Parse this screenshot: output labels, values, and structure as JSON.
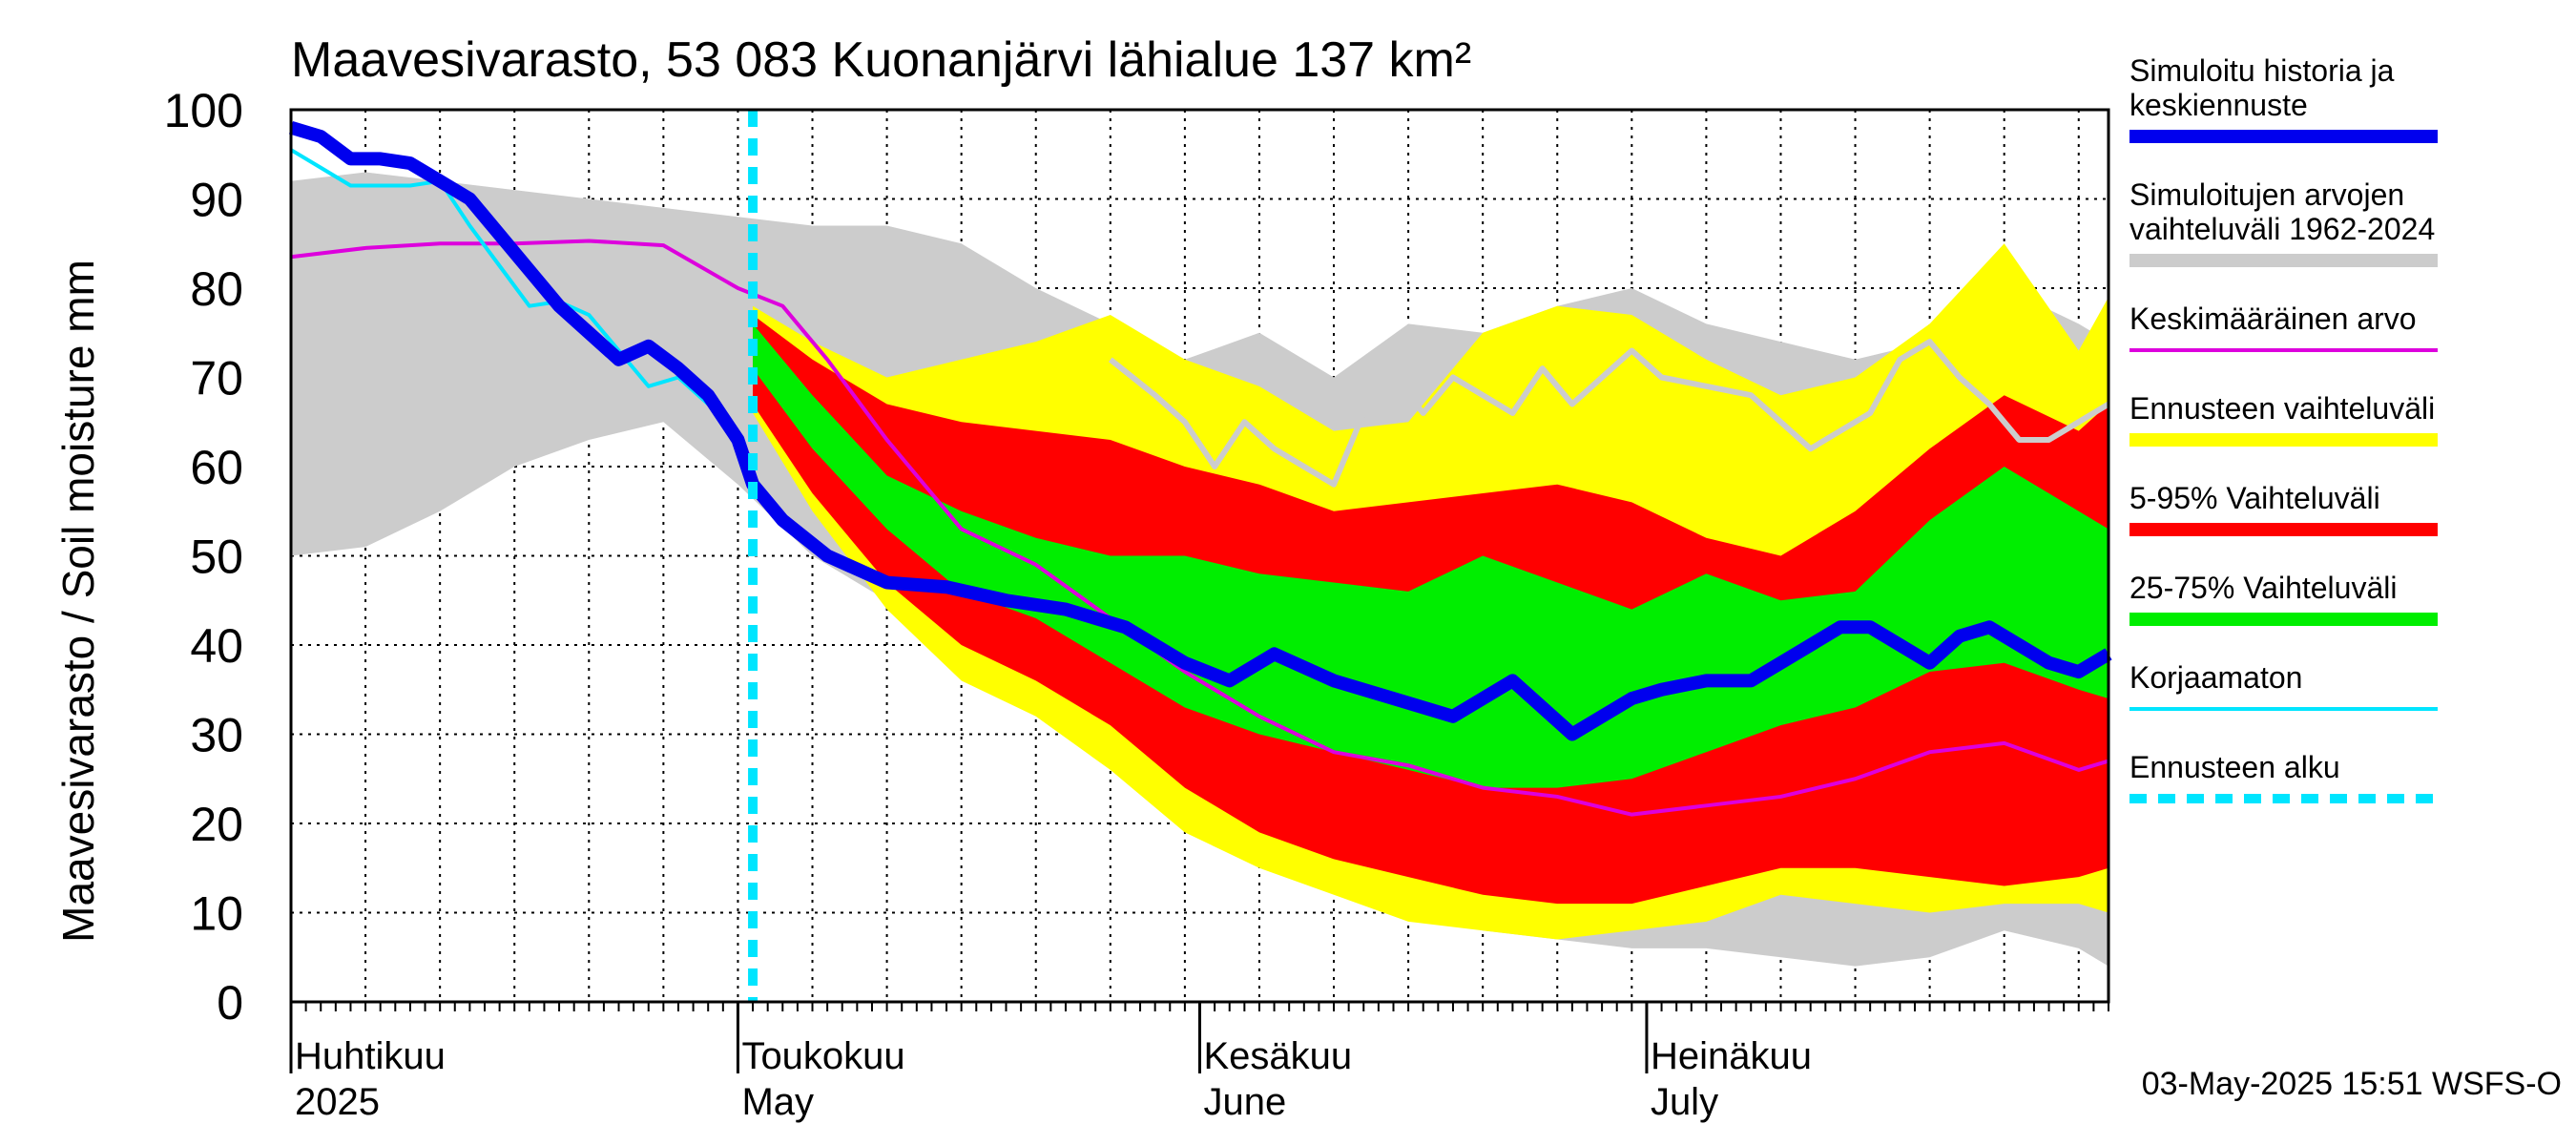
{
  "chart_data": {
    "type": "area",
    "title": "Maavesivarasto, 53 083 Kuonanjärvi lähialue 137 km²",
    "ylabel": "Maavesivarasto / Soil moisture   mm",
    "ylim": [
      0,
      100
    ],
    "y_ticks": [
      0,
      10,
      20,
      30,
      40,
      50,
      60,
      70,
      80,
      90,
      100
    ],
    "x_range_days": [
      0,
      122
    ],
    "months": [
      {
        "fi": "Huhtikuu",
        "en": "2025",
        "day": 0
      },
      {
        "fi": "Toukokuu",
        "en": "May",
        "day": 30
      },
      {
        "fi": "Kesäkuu",
        "en": "June",
        "day": 61
      },
      {
        "fi": "Heinäkuu",
        "en": "July",
        "day": 91
      }
    ],
    "forecast_start_day": 31,
    "timestamp": "03-May-2025 15:51 WSFS-O",
    "legend": [
      {
        "label": "Simuloitu historia ja\nkeskiennuste",
        "color": "#0000ee",
        "style": "thick"
      },
      {
        "label": "Simuloitujen arvojen\nvaihteluväli 1962-2024",
        "color": "#cccccc",
        "style": "band"
      },
      {
        "label": "Keskimääräinen arvo",
        "color": "#dd00dd",
        "style": "line"
      },
      {
        "label": "Ennusteen vaihteluväli",
        "color": "#ffff00",
        "style": "band"
      },
      {
        "label": "5-95% Vaihteluväli",
        "color": "#ff0000",
        "style": "band"
      },
      {
        "label": "25-75% Vaihteluväli",
        "color": "#00ee00",
        "style": "band"
      },
      {
        "label": "Korjaamaton",
        "color": "#00e5ff",
        "style": "line"
      },
      {
        "label": "Ennusteen alku",
        "color": "#00e5ff",
        "style": "dashed"
      }
    ],
    "series": [
      {
        "name": "hist_range",
        "x": [
          0,
          5,
          10,
          15,
          20,
          25,
          30,
          35,
          40,
          45,
          50,
          55,
          60,
          65,
          70,
          75,
          80,
          85,
          90,
          95,
          100,
          105,
          110,
          115,
          120,
          122
        ],
        "upper": [
          92,
          93,
          92,
          91,
          90,
          89,
          88,
          87,
          87,
          85,
          80,
          76,
          72,
          75,
          70,
          76,
          75,
          78,
          80,
          76,
          74,
          72,
          74,
          80,
          76,
          74
        ],
        "lower": [
          50,
          51,
          55,
          60,
          63,
          65,
          58,
          50,
          45,
          40,
          35,
          27,
          20,
          16,
          13,
          11,
          8,
          7,
          6,
          6,
          5,
          4,
          5,
          8,
          6,
          4
        ]
      },
      {
        "name": "forecast_range",
        "x": [
          31,
          35,
          40,
          45,
          50,
          55,
          60,
          65,
          70,
          75,
          80,
          85,
          90,
          95,
          100,
          105,
          110,
          115,
          120,
          122
        ],
        "upper": [
          78,
          74,
          70,
          72,
          74,
          77,
          72,
          69,
          64,
          65,
          75,
          78,
          77,
          72,
          68,
          70,
          76,
          85,
          73,
          79
        ],
        "lower": [
          66,
          55,
          44,
          36,
          32,
          26,
          19,
          15,
          12,
          9,
          8,
          7,
          8,
          9,
          12,
          11,
          10,
          11,
          11,
          10
        ]
      },
      {
        "name": "p5_95",
        "x": [
          31,
          35,
          40,
          45,
          50,
          55,
          60,
          65,
          70,
          75,
          80,
          85,
          90,
          95,
          100,
          105,
          110,
          115,
          120,
          122
        ],
        "upper": [
          77,
          72,
          67,
          65,
          64,
          63,
          60,
          58,
          55,
          56,
          57,
          58,
          56,
          52,
          50,
          55,
          62,
          68,
          64,
          67
        ],
        "lower": [
          67,
          57,
          47,
          40,
          36,
          31,
          24,
          19,
          16,
          14,
          12,
          11,
          11,
          13,
          15,
          15,
          14,
          13,
          14,
          15
        ]
      },
      {
        "name": "p25_75",
        "x": [
          31,
          35,
          40,
          45,
          50,
          55,
          60,
          65,
          70,
          75,
          80,
          85,
          90,
          95,
          100,
          105,
          110,
          115,
          120,
          122
        ],
        "upper": [
          76,
          68,
          59,
          55,
          52,
          50,
          50,
          48,
          47,
          46,
          50,
          47,
          44,
          48,
          45,
          46,
          54,
          60,
          55,
          53
        ],
        "lower": [
          71,
          62,
          53,
          46,
          43,
          38,
          33,
          30,
          28,
          26,
          24,
          24,
          25,
          28,
          31,
          33,
          37,
          38,
          35,
          34
        ]
      },
      {
        "name": "mean",
        "x": [
          0,
          5,
          10,
          15,
          20,
          25,
          30,
          33,
          36,
          40,
          45,
          50,
          55,
          60,
          65,
          70,
          75,
          80,
          85,
          90,
          95,
          100,
          105,
          110,
          115,
          120,
          122
        ],
        "y": [
          83.5,
          84.5,
          85,
          85,
          85.3,
          84.8,
          80,
          78,
          72,
          63,
          53,
          49,
          43,
          37,
          32,
          28,
          26.5,
          24,
          23,
          21,
          22,
          23,
          25,
          28,
          29,
          26,
          27
        ]
      },
      {
        "name": "max_tail",
        "x": [
          55,
          58,
          60,
          62,
          64,
          66,
          68,
          70,
          72,
          74,
          76,
          78,
          80,
          82,
          84,
          86,
          88,
          90,
          92,
          95,
          98,
          100,
          102,
          104,
          106,
          108,
          110,
          112,
          114,
          116,
          118,
          120,
          122
        ],
        "y": [
          72,
          68,
          65,
          60,
          65,
          62,
          60,
          58,
          66,
          70,
          66,
          70,
          68,
          66,
          71,
          67,
          70,
          73,
          70,
          69,
          68,
          65,
          62,
          64,
          66,
          72,
          74,
          70,
          67,
          63,
          63,
          65,
          67
        ]
      },
      {
        "name": "main",
        "x": [
          0,
          2,
          4,
          6,
          8,
          10,
          12,
          14,
          16,
          18,
          20,
          22,
          24,
          26,
          28,
          30,
          31,
          33,
          36,
          40,
          44,
          48,
          52,
          56,
          60,
          63,
          66,
          70,
          74,
          78,
          82,
          86,
          90,
          92,
          95,
          98,
          100,
          104,
          106,
          108,
          110,
          112,
          114,
          116,
          118,
          120,
          122
        ],
        "y": [
          98,
          97,
          94.5,
          94.5,
          94,
          92,
          90,
          86,
          82,
          78,
          75,
          72,
          73.5,
          71,
          68,
          63,
          58,
          54,
          50,
          47,
          46.5,
          45,
          44,
          42,
          38,
          36,
          39,
          36,
          34,
          32,
          36,
          30,
          34,
          35,
          36,
          36,
          38,
          42,
          42,
          40,
          38,
          41,
          42,
          40,
          38,
          37,
          39
        ]
      },
      {
        "name": "uncorrected",
        "x": [
          0,
          2,
          4,
          6,
          8,
          10,
          12,
          14,
          16,
          18,
          20,
          22,
          24,
          26,
          28
        ],
        "y": [
          95.5,
          93.5,
          91.5,
          91.5,
          91.5,
          92,
          87,
          82.5,
          78,
          78.5,
          77,
          73,
          69,
          70,
          67
        ]
      }
    ]
  }
}
